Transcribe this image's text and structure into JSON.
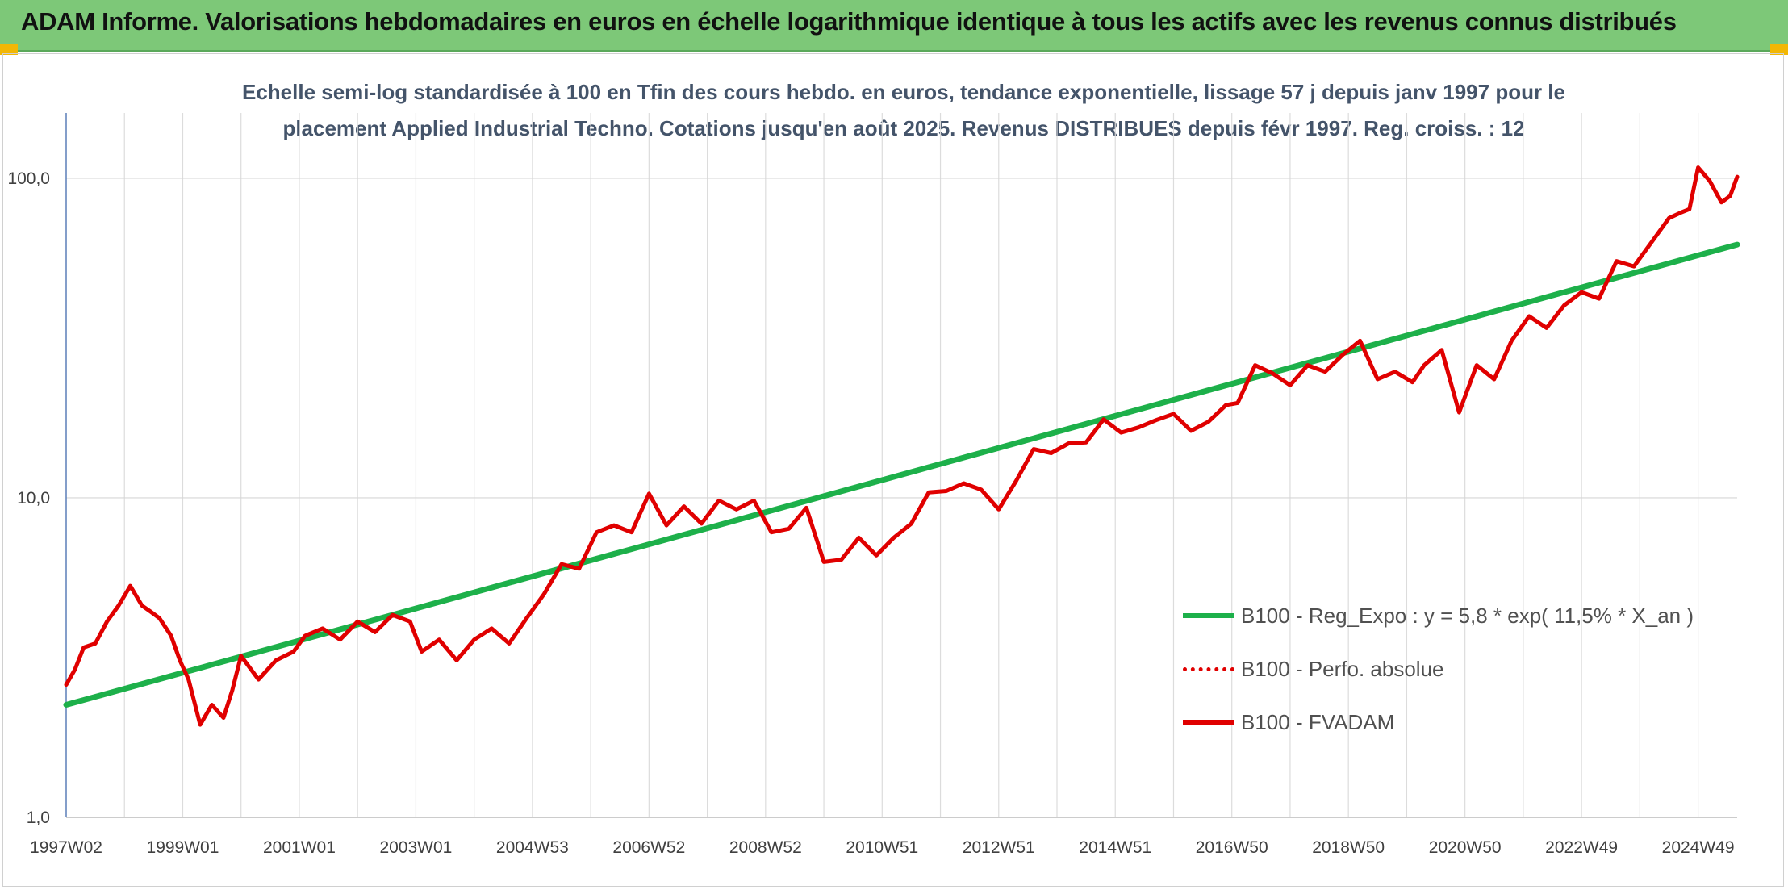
{
  "header": {
    "title": "ADAM Informe. Valorisations hebdomadaires en euros en échelle logarithmique identique à tous les actifs avec les revenus connus distribués"
  },
  "chart_data": {
    "type": "line",
    "y_scale": "log",
    "ylim": [
      1,
      160
    ],
    "title_lines": [
      "Echelle semi-log standardisée à 100 en Tfin des cours hebdo. en euros, tendance exponentielle, lissage 57 j depuis janv 1997 pour le",
      "placement Applied Industrial Techno. Cotations jusqu'en août 2025. Revenus DISTRIBUES depuis févr 1997. Reg. croiss. : 12"
    ],
    "y_ticks": [
      {
        "value": 1,
        "label": "1,0"
      },
      {
        "value": 10,
        "label": "10,0"
      },
      {
        "value": 100,
        "label": "100,0"
      }
    ],
    "x_ticks": [
      {
        "year": 1997.0,
        "label": "1997W02"
      },
      {
        "year": 1999.0,
        "label": "1999W01"
      },
      {
        "year": 2001.0,
        "label": "2001W01"
      },
      {
        "year": 2003.0,
        "label": "2003W01"
      },
      {
        "year": 2005.0,
        "label": "2004W53"
      },
      {
        "year": 2007.0,
        "label": "2006W52"
      },
      {
        "year": 2009.0,
        "label": "2008W52"
      },
      {
        "year": 2011.0,
        "label": "2010W51"
      },
      {
        "year": 2013.0,
        "label": "2012W51"
      },
      {
        "year": 2015.0,
        "label": "2014W51"
      },
      {
        "year": 2017.0,
        "label": "2016W50"
      },
      {
        "year": 2019.0,
        "label": "2018W50"
      },
      {
        "year": 2021.0,
        "label": "2020W50"
      },
      {
        "year": 2023.0,
        "label": "2022W49"
      },
      {
        "year": 2025.0,
        "label": "2024W49"
      }
    ],
    "x_range": [
      1997.0,
      2025.67
    ],
    "legend": [
      {
        "name": "B100 - Reg_Expo : y = 5,8 * exp( 11,5% *  X_an )",
        "color": "#1db04a",
        "style": "solid"
      },
      {
        "name": "B100 - Perfo. absolue",
        "color": "#e00000",
        "style": "dotted"
      },
      {
        "name": "B100 - FVADAM",
        "color": "#e00000",
        "style": "solid"
      }
    ],
    "series": [
      {
        "key": "reg_expo",
        "color": "#1db04a",
        "x": [
          1997.0,
          2025.67
        ],
        "values": [
          2.25,
          62.0
        ]
      },
      {
        "key": "fvadam",
        "color": "#e00000",
        "x": [
          1997.0,
          1997.15,
          1997.3,
          1997.5,
          1997.7,
          1997.9,
          1998.1,
          1998.3,
          1998.45,
          1998.6,
          1998.8,
          1998.95,
          1999.1,
          1999.3,
          1999.5,
          1999.7,
          1999.85,
          2000.0,
          2000.3,
          2000.6,
          2000.9,
          2001.1,
          2001.4,
          2001.7,
          2002.0,
          2002.3,
          2002.6,
          2002.9,
          2003.1,
          2003.4,
          2003.7,
          2004.0,
          2004.3,
          2004.6,
          2004.9,
          2005.2,
          2005.5,
          2005.8,
          2006.1,
          2006.4,
          2006.7,
          2007.0,
          2007.3,
          2007.6,
          2007.9,
          2008.2,
          2008.5,
          2008.8,
          2009.1,
          2009.4,
          2009.7,
          2010.0,
          2010.3,
          2010.6,
          2010.9,
          2011.2,
          2011.5,
          2011.8,
          2012.1,
          2012.4,
          2012.7,
          2013.0,
          2013.3,
          2013.6,
          2013.9,
          2014.2,
          2014.5,
          2014.8,
          2015.1,
          2015.4,
          2015.7,
          2016.0,
          2016.3,
          2016.6,
          2016.9,
          2017.1,
          2017.4,
          2017.7,
          2018.0,
          2018.3,
          2018.6,
          2018.9,
          2019.2,
          2019.5,
          2019.8,
          2020.1,
          2020.3,
          2020.6,
          2020.9,
          2021.2,
          2021.5,
          2021.8,
          2022.1,
          2022.4,
          2022.7,
          2023.0,
          2023.3,
          2023.6,
          2023.9,
          2024.2,
          2024.5,
          2024.7,
          2024.85,
          2025.0,
          2025.2,
          2025.4,
          2025.55,
          2025.67
        ],
        "values": [
          2.6,
          2.9,
          3.4,
          3.5,
          4.1,
          4.6,
          5.3,
          4.6,
          4.4,
          4.2,
          3.7,
          3.1,
          2.7,
          1.95,
          2.25,
          2.05,
          2.5,
          3.2,
          2.7,
          3.1,
          3.3,
          3.7,
          3.9,
          3.6,
          4.1,
          3.8,
          4.3,
          4.1,
          3.3,
          3.6,
          3.1,
          3.6,
          3.9,
          3.5,
          4.2,
          5.0,
          6.2,
          6.0,
          7.8,
          8.2,
          7.8,
          10.3,
          8.2,
          9.4,
          8.3,
          9.8,
          9.2,
          9.8,
          7.8,
          8.0,
          9.3,
          6.3,
          6.4,
          7.5,
          6.6,
          7.5,
          8.3,
          10.4,
          10.5,
          11.1,
          10.6,
          9.2,
          11.3,
          14.2,
          13.8,
          14.8,
          14.9,
          17.6,
          16.0,
          16.6,
          17.5,
          18.3,
          16.2,
          17.3,
          19.5,
          19.8,
          26.0,
          24.5,
          22.5,
          26.0,
          24.8,
          28.0,
          31.0,
          23.5,
          24.8,
          23.0,
          26.0,
          29.0,
          18.5,
          26.0,
          23.5,
          31.0,
          37.0,
          34.0,
          40.0,
          44.0,
          42.0,
          55.0,
          53.0,
          63.0,
          75.0,
          78.0,
          80.0,
          108.0,
          98.0,
          84.0,
          88.0,
          101.0
        ]
      }
    ]
  }
}
